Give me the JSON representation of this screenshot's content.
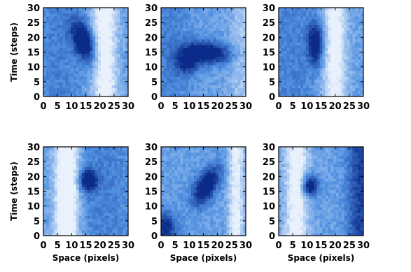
{
  "chart_data": [
    {
      "type": "heatmap",
      "panel": "top-left",
      "xlim": [
        0,
        30
      ],
      "ylim": [
        0,
        30
      ],
      "xticks": [
        "0",
        "5",
        "10",
        "15",
        "20",
        "25",
        "30"
      ],
      "yticks": [
        "0",
        "5",
        "10",
        "15",
        "20",
        "25",
        "30"
      ],
      "xlabel": "",
      "ylabel": "Time (steps)",
      "features": [
        {
          "kind": "blob",
          "x": 14,
          "y": 19,
          "sx": 2.5,
          "sy": 5,
          "rot": -0.35,
          "strength": 0.85
        },
        {
          "kind": "band",
          "x": 22,
          "width": 3,
          "strength": -0.55
        },
        {
          "kind": "band",
          "x": 5,
          "width": 6,
          "strength": 0.15
        }
      ]
    },
    {
      "type": "heatmap",
      "panel": "top-middle",
      "xlim": [
        0,
        30
      ],
      "ylim": [
        0,
        30
      ],
      "xticks": [
        "0",
        "5",
        "10",
        "15",
        "20",
        "25",
        "30"
      ],
      "yticks": [
        "0",
        "5",
        "10",
        "15",
        "20",
        "25",
        "30"
      ],
      "xlabel": "",
      "ylabel": "",
      "features": [
        {
          "kind": "blob",
          "x": 16,
          "y": 15,
          "sx": 6,
          "sy": 2.5,
          "rot": 0.1,
          "strength": 0.85
        },
        {
          "kind": "blob",
          "x": 9,
          "y": 11,
          "sx": 3,
          "sy": 2.5,
          "rot": 0,
          "strength": 0.55
        },
        {
          "kind": "band",
          "x": 29,
          "width": 3,
          "strength": -0.2
        },
        {
          "kind": "band",
          "x": 3,
          "width": 5,
          "strength": 0.15
        }
      ]
    },
    {
      "type": "heatmap",
      "panel": "top-right",
      "xlim": [
        0,
        30
      ],
      "ylim": [
        0,
        30
      ],
      "xticks": [
        "0",
        "5",
        "10",
        "15",
        "20",
        "25",
        "30"
      ],
      "yticks": [
        "0",
        "5",
        "10",
        "15",
        "20",
        "25",
        "30"
      ],
      "xlabel": "",
      "ylabel": "",
      "features": [
        {
          "kind": "blob",
          "x": 13,
          "y": 18,
          "sx": 2,
          "sy": 5,
          "rot": 0,
          "strength": 0.8
        },
        {
          "kind": "band",
          "x": 20,
          "width": 3,
          "strength": -0.5
        },
        {
          "kind": "band",
          "x": 4,
          "width": 6,
          "strength": 0.15
        }
      ]
    },
    {
      "type": "heatmap",
      "panel": "bottom-left",
      "xlim": [
        0,
        30
      ],
      "ylim": [
        0,
        30
      ],
      "xticks": [
        "0",
        "5",
        "10",
        "15",
        "20",
        "25",
        "30"
      ],
      "yticks": [
        "0",
        "5",
        "10",
        "15",
        "20",
        "25",
        "30"
      ],
      "xlabel": "Space (pixels)",
      "ylabel": "Time (steps)",
      "features": [
        {
          "kind": "blob",
          "x": 16,
          "y": 19,
          "sx": 2.2,
          "sy": 2.5,
          "rot": 0,
          "strength": 0.85
        },
        {
          "kind": "band",
          "x": 8,
          "width": 3,
          "strength": -0.75
        },
        {
          "kind": "band",
          "x": 22,
          "width": 8,
          "strength": 0.15
        }
      ]
    },
    {
      "type": "heatmap",
      "panel": "bottom-middle",
      "xlim": [
        0,
        30
      ],
      "ylim": [
        0,
        30
      ],
      "xticks": [
        "0",
        "5",
        "10",
        "15",
        "20",
        "25",
        "30"
      ],
      "yticks": [
        "0",
        "5",
        "10",
        "15",
        "20",
        "25",
        "30"
      ],
      "xlabel": "Space (pixels)",
      "ylabel": "",
      "features": [
        {
          "kind": "blob",
          "x": 16,
          "y": 17,
          "sx": 2.5,
          "sy": 5,
          "rot": 0.55,
          "strength": 0.85
        },
        {
          "kind": "blob",
          "x": 1,
          "y": 2,
          "sx": 3,
          "sy": 4,
          "rot": 0,
          "strength": 0.6
        },
        {
          "kind": "band",
          "x": 27,
          "width": 2,
          "strength": -0.45
        }
      ]
    },
    {
      "type": "heatmap",
      "panel": "bottom-right",
      "xlim": [
        0,
        30
      ],
      "ylim": [
        0,
        30
      ],
      "xticks": [
        "0",
        "5",
        "10",
        "15",
        "20",
        "25",
        "30"
      ],
      "yticks": [
        "0",
        "5",
        "10",
        "15",
        "20",
        "25",
        "30"
      ],
      "xlabel": "Space (pixels)",
      "ylabel": "",
      "features": [
        {
          "kind": "blob",
          "x": 11,
          "y": 17,
          "sx": 2,
          "sy": 2.5,
          "rot": 0,
          "strength": 0.85
        },
        {
          "kind": "band",
          "x": 6,
          "width": 3,
          "strength": -0.5
        },
        {
          "kind": "band",
          "x": 29,
          "width": 3,
          "strength": 0.45
        }
      ]
    }
  ],
  "colors": {
    "light": "#e8f1fc",
    "mid": "#4f8fe0",
    "dark": "#0b2a8a"
  }
}
